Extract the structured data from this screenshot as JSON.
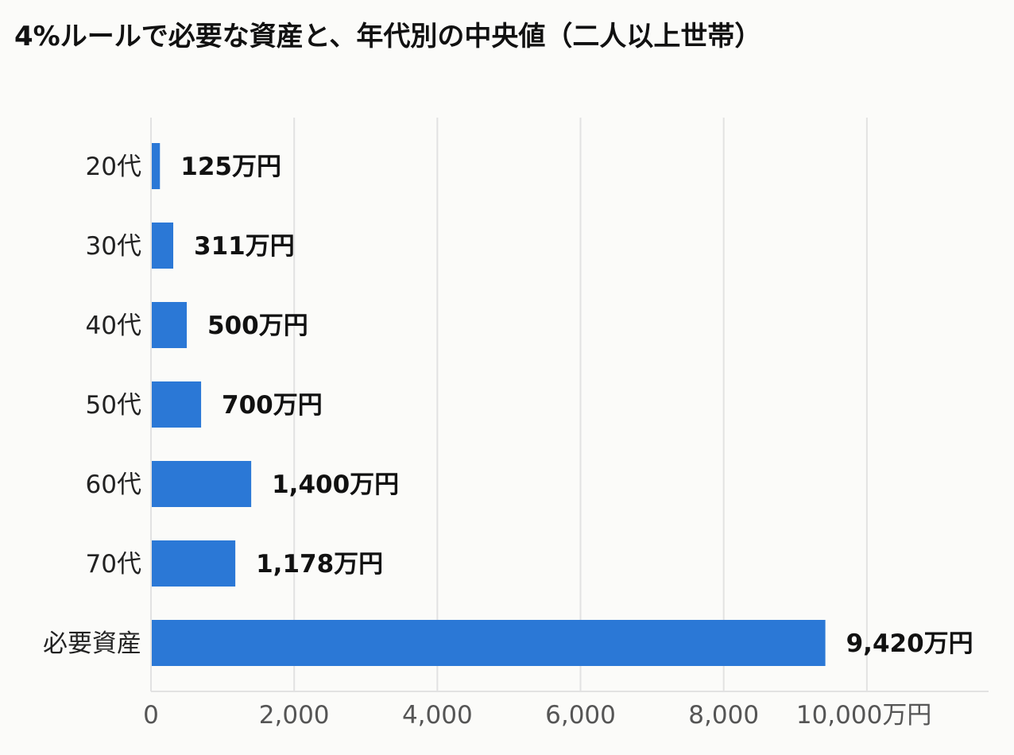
{
  "chart_data": {
    "type": "bar",
    "orientation": "horizontal",
    "title": "4%ルールで必要な資産と、年代別の中央値（二人以上世帯）",
    "unit": "万円",
    "categories": [
      "20代",
      "30代",
      "40代",
      "50代",
      "60代",
      "70代",
      "必要資産"
    ],
    "values": [
      125,
      311,
      500,
      700,
      1400,
      1178,
      9420
    ],
    "data_labels": [
      "125万円",
      "311万円",
      "500万円",
      "700万円",
      "1,400万円",
      "1,178万円",
      "9,420万円"
    ],
    "x_ticks": [
      "0",
      "2,000",
      "4,000",
      "6,000",
      "8,000",
      "10,000万円"
    ],
    "xlim": [
      0,
      11700
    ],
    "grid": true,
    "bar_color": "#2b78d6",
    "grid_color": "#e2e2e2"
  }
}
